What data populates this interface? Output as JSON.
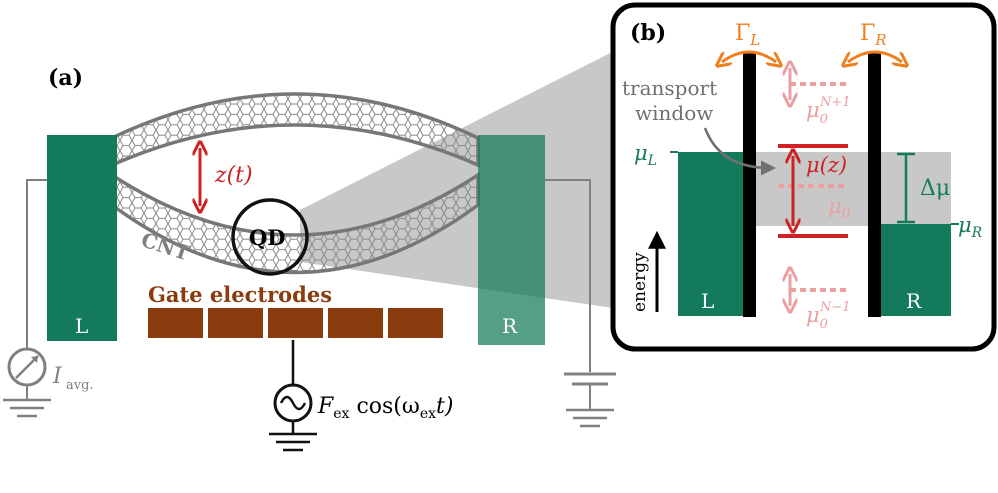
{
  "panel_a": {
    "label": "(a)",
    "left_lead": "L",
    "right_lead": "R",
    "cnt_label": "CNT",
    "displacement": "z(t)",
    "qd_label": "QD",
    "gate_label": "Gate electrodes",
    "current_symbol": "I",
    "current_subscript": "avg.",
    "drive_F": "F",
    "drive_F_sub": "ex",
    "drive_cos": " cos(ω",
    "drive_omega_sub": "ex",
    "drive_t": "t)"
  },
  "panel_b": {
    "label": "(b)",
    "gamma_L": "Γ",
    "gamma_L_sub": "L",
    "gamma_R": "Γ",
    "gamma_R_sub": "R",
    "transport_line1": "transport",
    "transport_line2": "window",
    "mu_L": "μ",
    "mu_L_sub": "L",
    "mu_R": "μ",
    "mu_R_sub": "R",
    "delta_mu": "Δμ",
    "mu_z": "μ(z)",
    "mu0": "μ",
    "mu0_sub": "0",
    "mu0_up": "μ",
    "mu0_up_sub": "0",
    "mu0_up_sup": "N+1",
    "mu0_down": "μ",
    "mu0_down_sub": "0",
    "mu0_down_sup": "N−1",
    "energy": "energy",
    "left_lead": "L",
    "right_lead": "R"
  },
  "colors": {
    "lead_green": "#137a5c",
    "gate_brown": "#8b3c0e",
    "level_red": "#cc2222",
    "faded_red": "#e8a0a0",
    "gamma_orange": "#f07f1e",
    "window_gray": "#c8c8c8",
    "wire_gray": "#808080"
  }
}
